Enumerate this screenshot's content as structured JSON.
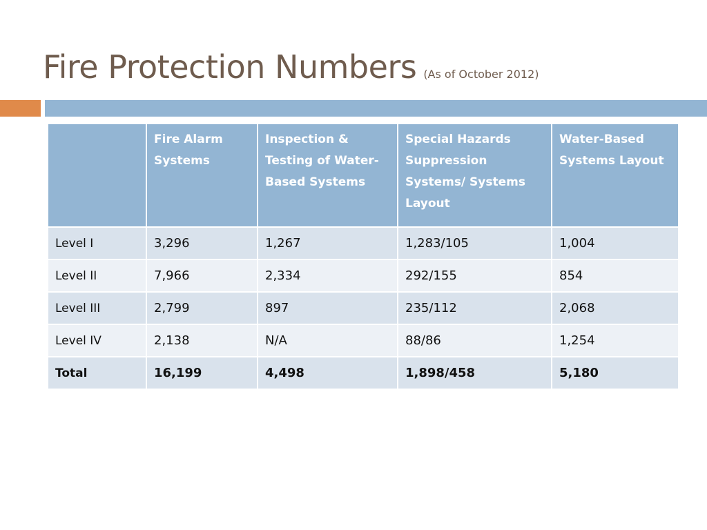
{
  "slide": {
    "title": "Fire Protection Numbers",
    "subtitle": "(As of October 2012)",
    "colors": {
      "title": "#6f5c4e",
      "accent_bar": "#e08a4a",
      "header_bar": "#93b5d3",
      "table_header": "#93b5d3",
      "row_dark": "#d9e2ec",
      "row_light": "#edf1f6"
    }
  },
  "table": {
    "headers": [
      "",
      "Fire Alarm Systems",
      "Inspection & Testing of Water-Based Systems",
      "Special Hazards Suppression Systems/ Systems Layout",
      "Water-Based Systems Layout"
    ],
    "rows": [
      [
        "Level I",
        "3,296",
        "1,267",
        "1,283/105",
        "1,004"
      ],
      [
        "Level II",
        "7,966",
        "2,334",
        "292/155",
        "854"
      ],
      [
        "Level III",
        "2,799",
        "897",
        "235/112",
        "2,068"
      ],
      [
        "Level IV",
        "2,138",
        "N/A",
        "88/86",
        "1,254"
      ],
      [
        "Total",
        "16,199",
        "4,498",
        "1,898/458",
        "5,180"
      ]
    ]
  }
}
